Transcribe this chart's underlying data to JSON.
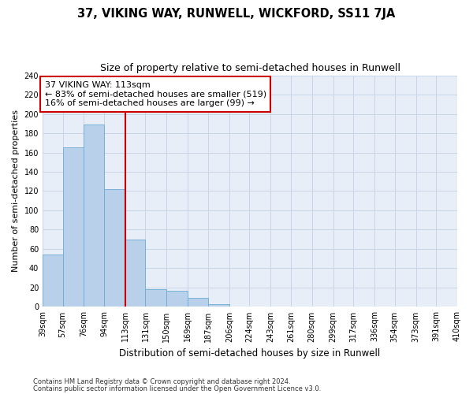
{
  "title": "37, VIKING WAY, RUNWELL, WICKFORD, SS11 7JA",
  "subtitle": "Size of property relative to semi-detached houses in Runwell",
  "xlabel": "Distribution of semi-detached houses by size in Runwell",
  "ylabel": "Number of semi-detached properties",
  "footer1": "Contains HM Land Registry data © Crown copyright and database right 2024.",
  "footer2": "Contains public sector information licensed under the Open Government Licence v3.0.",
  "annotation_title": "37 VIKING WAY: 113sqm",
  "annotation_line1": "← 83% of semi-detached houses are smaller (519)",
  "annotation_line2": "16% of semi-detached houses are larger (99) →",
  "property_line_x": 113,
  "categories": [
    "39sqm",
    "57sqm",
    "76sqm",
    "94sqm",
    "113sqm",
    "131sqm",
    "150sqm",
    "169sqm",
    "187sqm",
    "206sqm",
    "224sqm",
    "243sqm",
    "261sqm",
    "280sqm",
    "299sqm",
    "317sqm",
    "336sqm",
    "354sqm",
    "373sqm",
    "391sqm",
    "410sqm"
  ],
  "bar_edges": [
    39,
    57,
    76,
    94,
    113,
    131,
    150,
    169,
    187,
    206,
    224,
    243,
    261,
    280,
    299,
    317,
    336,
    354,
    373,
    391,
    410
  ],
  "values": [
    54,
    165,
    189,
    122,
    70,
    18,
    17,
    9,
    3,
    0,
    0,
    0,
    0,
    0,
    0,
    0,
    0,
    0,
    0,
    0
  ],
  "bar_color": "#b8d0ea",
  "bar_edge_color": "#6aaad4",
  "red_line_color": "#cc0000",
  "grid_color": "#c8d4e8",
  "background_color": "#e8eef8",
  "ylim": [
    0,
    240
  ],
  "yticks": [
    0,
    20,
    40,
    60,
    80,
    100,
    120,
    140,
    160,
    180,
    200,
    220,
    240
  ],
  "annotation_box_color": "#ffffff",
  "annotation_box_edge": "#cc0000",
  "title_fontsize": 10.5,
  "subtitle_fontsize": 9,
  "annotation_fontsize": 8,
  "tick_fontsize": 7,
  "ylabel_fontsize": 8,
  "xlabel_fontsize": 8.5,
  "footer_fontsize": 6
}
